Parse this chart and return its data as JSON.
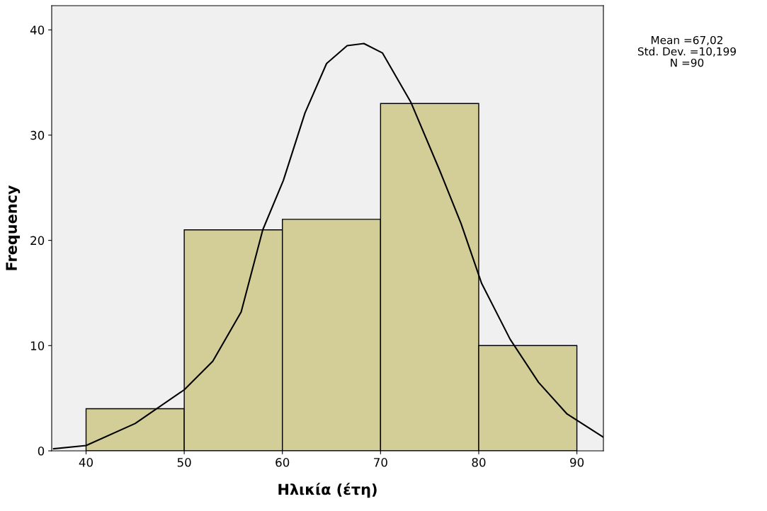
{
  "chart_data": {
    "type": "histogram",
    "xlabel": "Ηλικία (έτη)",
    "ylabel": "Frequency",
    "bins": [
      40,
      50,
      60,
      70,
      80,
      90
    ],
    "series": [
      {
        "type": "histogram",
        "color": "#d3ce97",
        "values": [
          4,
          21,
          22,
          33,
          10
        ]
      },
      {
        "type": "line",
        "color": "#000000",
        "x": [
          36.7,
          40,
          45,
          50,
          52.9,
          55.8,
          58,
          60.1,
          62.3,
          64.5,
          66.6,
          68.3,
          70.2,
          73.1,
          76,
          78.2,
          80.3,
          83.2,
          86.1,
          89,
          92.7
        ],
        "values": [
          0.2,
          0.5,
          2.6,
          5.8,
          8.5,
          13.2,
          21,
          25.7,
          32.1,
          36.8,
          38.5,
          38.7,
          37.8,
          33.1,
          26.7,
          21.6,
          15.9,
          10.6,
          6.5,
          3.5,
          1.3
        ]
      }
    ],
    "xlim": [
      36.5,
      92.7
    ],
    "ylim": [
      0,
      42.3
    ],
    "xticks": [
      40,
      50,
      60,
      70,
      80,
      90
    ],
    "yticks": [
      0,
      10,
      20,
      30,
      40
    ],
    "grid": false,
    "legend": false,
    "marker": "none",
    "line_style": "solid",
    "annotations": [
      "Mean =67,02",
      "Std. Dev. =10,199",
      "N =90"
    ]
  }
}
